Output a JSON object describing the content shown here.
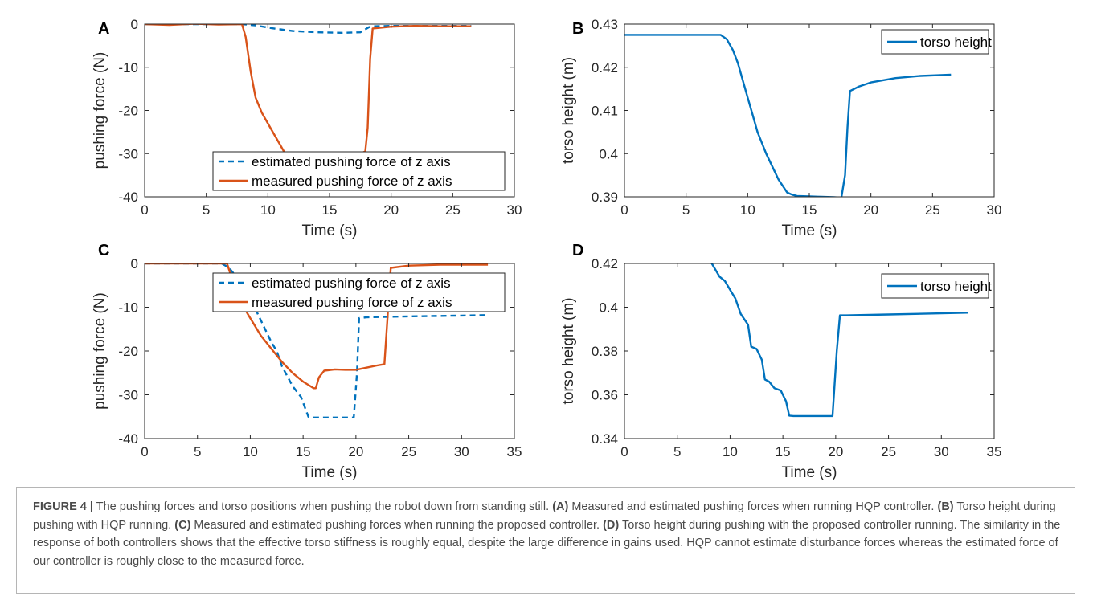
{
  "caption": {
    "figure_label": "FIGURE 4 |",
    "segments": [
      {
        "t": " The pushing forces and torso positions when pushing the robot down from standing still. ",
        "b": false
      },
      {
        "t": "(A)",
        "b": true
      },
      {
        "t": " Measured and estimated pushing forces when running HQP controller. ",
        "b": false
      },
      {
        "t": "(B)",
        "b": true
      },
      {
        "t": " Torso height during pushing with HQP running. ",
        "b": false
      },
      {
        "t": "(C)",
        "b": true
      },
      {
        "t": " Measured and estimated pushing forces when running the proposed controller. ",
        "b": false
      },
      {
        "t": "(D)",
        "b": true
      },
      {
        "t": " Torso height during pushing with the proposed controller running. The similarity in the response of both controllers shows that the effective torso stiffness is roughly equal, despite the large difference in gains used. HQP cannot estimate disturbance forces whereas the estimated force of our controller is roughly close to the measured force.",
        "b": false
      }
    ]
  },
  "colors": {
    "estimated": "#0072bd",
    "measured": "#d95319",
    "torso": "#0072bd",
    "axis": "#262626",
    "legend_border": "#262626"
  },
  "chart_data": [
    {
      "panel": "A",
      "type": "line",
      "xlabel": "Time (s)",
      "ylabel": "pushing force (N)",
      "xlim": [
        0,
        30
      ],
      "ylim": [
        -40,
        0
      ],
      "xticks": [
        0,
        5,
        10,
        15,
        20,
        25,
        30
      ],
      "yticks": [
        -40,
        -30,
        -20,
        -10,
        0
      ],
      "legend_position": "bottom-right",
      "series": [
        {
          "name": "estimated pushing force of z axis",
          "style": "dashed",
          "color": "#0072bd",
          "x": [
            0,
            7.9,
            9,
            10,
            11,
            12,
            14,
            16,
            17.5,
            18.2,
            18.5,
            20,
            26.5
          ],
          "y": [
            0,
            0,
            -0.3,
            -0.8,
            -1.2,
            -1.6,
            -1.9,
            -2.0,
            -1.9,
            -0.7,
            -0.5,
            -0.4,
            -0.4
          ]
        },
        {
          "name": "measured pushing force of z axis",
          "style": "solid",
          "color": "#d95319",
          "x": [
            0,
            2,
            4,
            6,
            7.9,
            8.2,
            8.6,
            9,
            9.5,
            10,
            10.5,
            11,
            11.3,
            11.5,
            12,
            13,
            14,
            15,
            16,
            17,
            17.9,
            18.1,
            18.3,
            18.5,
            20,
            22,
            24,
            26.5
          ],
          "y": [
            0,
            -0.2,
            0.1,
            -0.1,
            0,
            -3,
            -11,
            -17,
            -20.5,
            -23,
            -25.5,
            -28,
            -29.5,
            -30.5,
            -31,
            -31,
            -31,
            -31,
            -31,
            -30.5,
            -29.5,
            -24,
            -8,
            -1,
            -0.6,
            -0.4,
            -0.5,
            -0.5
          ]
        }
      ]
    },
    {
      "panel": "B",
      "type": "line",
      "xlabel": "Time (s)",
      "ylabel": "torso height (m)",
      "xlim": [
        0,
        30
      ],
      "ylim": [
        0.39,
        0.43
      ],
      "xticks": [
        0,
        5,
        10,
        15,
        20,
        25,
        30
      ],
      "yticks": [
        0.39,
        0.4,
        0.41,
        0.42,
        0.43
      ],
      "ytick_labels": [
        "0.39",
        "0.4",
        "0.41",
        "0.42",
        "0.43"
      ],
      "legend_position": "top-right",
      "series": [
        {
          "name": "torso height",
          "style": "solid",
          "color": "#0072bd",
          "x": [
            0,
            7,
            7.8,
            8.3,
            8.8,
            9.2,
            9.6,
            10,
            10.4,
            10.8,
            11.5,
            12.5,
            13.2,
            13.6,
            14,
            15,
            16,
            17,
            17.6,
            17.9,
            18.1,
            18.3,
            19,
            20,
            22,
            24,
            26.5
          ],
          "y": [
            0.4275,
            0.4275,
            0.4275,
            0.4265,
            0.424,
            0.421,
            0.417,
            0.413,
            0.409,
            0.405,
            0.4,
            0.394,
            0.391,
            0.3905,
            0.3902,
            0.3901,
            0.39,
            0.3899,
            0.3898,
            0.395,
            0.406,
            0.4145,
            0.4155,
            0.4165,
            0.4175,
            0.418,
            0.4183
          ]
        }
      ]
    },
    {
      "panel": "C",
      "type": "line",
      "xlabel": "Time (s)",
      "ylabel": "pushing force (N)",
      "xlim": [
        0,
        35
      ],
      "ylim": [
        -40,
        0
      ],
      "xticks": [
        0,
        5,
        10,
        15,
        20,
        25,
        30,
        35
      ],
      "yticks": [
        -40,
        -30,
        -20,
        -10,
        0
      ],
      "legend_position": "top-right",
      "series": [
        {
          "name": "estimated pushing force of z axis",
          "style": "dashed",
          "color": "#0072bd",
          "x": [
            0,
            7.3,
            8,
            9,
            10,
            11,
            12,
            12.5,
            13,
            14,
            14.8,
            15.5,
            16,
            17,
            18,
            19,
            19.8,
            20.1,
            20.3,
            21,
            25,
            30,
            32.5
          ],
          "y": [
            0,
            0,
            -1,
            -4,
            -8,
            -13,
            -18,
            -20,
            -23.5,
            -28,
            -30.5,
            -35,
            -35.2,
            -35.2,
            -35.2,
            -35.2,
            -35.2,
            -25,
            -12.5,
            -12.3,
            -12.1,
            -11.9,
            -11.8
          ]
        },
        {
          "name": "measured pushing force of z axis",
          "style": "solid",
          "color": "#d95319",
          "x": [
            0,
            5,
            7.8,
            8.2,
            8.8,
            9.5,
            10,
            11,
            12,
            13,
            14,
            15,
            16,
            16.2,
            16.5,
            17,
            18,
            19,
            20,
            21,
            22,
            22.7,
            23,
            23.3,
            25,
            28,
            30,
            32.5
          ],
          "y": [
            0,
            0,
            0,
            -3,
            -7,
            -10.5,
            -12.5,
            -16.5,
            -19.5,
            -22.5,
            -25,
            -27,
            -28.5,
            -28.5,
            -26,
            -24.5,
            -24.2,
            -24.3,
            -24.3,
            -23.8,
            -23.3,
            -23,
            -12,
            -1,
            -0.5,
            -0.3,
            -0.3,
            -0.3
          ]
        }
      ]
    },
    {
      "panel": "D",
      "type": "line",
      "xlabel": "Time (s)",
      "ylabel": "torso height (m)",
      "xlim": [
        0,
        35
      ],
      "ylim": [
        0.34,
        0.42
      ],
      "xticks": [
        0,
        5,
        10,
        15,
        20,
        25,
        30,
        35
      ],
      "yticks": [
        0.34,
        0.36,
        0.38,
        0.4,
        0.42
      ],
      "ytick_labels": [
        "0.34",
        "0.36",
        "0.38",
        "0.4",
        "0.42"
      ],
      "legend_position": "top-right",
      "series": [
        {
          "name": "torso height",
          "style": "solid",
          "color": "#0072bd",
          "x": [
            0,
            7.5,
            8.2,
            9,
            9.5,
            10,
            10.5,
            11,
            11.7,
            12,
            12.5,
            13,
            13.3,
            13.7,
            14.2,
            14.8,
            15.3,
            15.6,
            16,
            18,
            19.7,
            20.1,
            20.4,
            21,
            25,
            30,
            32.5
          ],
          "y": [
            0.4205,
            0.4205,
            0.4205,
            0.414,
            0.412,
            0.408,
            0.404,
            0.397,
            0.392,
            0.382,
            0.381,
            0.376,
            0.367,
            0.366,
            0.363,
            0.362,
            0.357,
            0.3505,
            0.3503,
            0.3503,
            0.3503,
            0.38,
            0.3963,
            0.3963,
            0.3967,
            0.3972,
            0.3975
          ]
        }
      ]
    }
  ]
}
